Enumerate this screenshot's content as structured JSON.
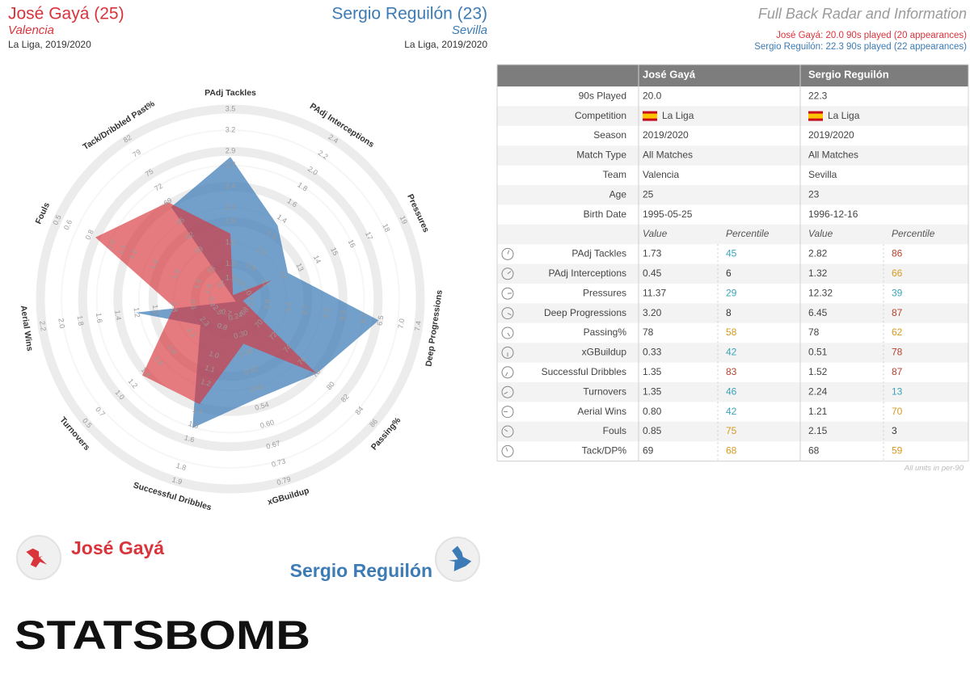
{
  "header": {
    "left": {
      "name": "José Gayá (25)",
      "team": "Valencia",
      "league": "La Liga, 2019/2020"
    },
    "right": {
      "name": "Sergio Reguilón (23)",
      "team": "Sevilla",
      "league": "La Liga, 2019/2020"
    },
    "title": "Full Back Radar and Information",
    "subtitles": [
      "José Gayá: 20.0 90s played (20 appearances)",
      "Sergio Reguilón: 22.3 90s played (22 appearances)"
    ]
  },
  "chart_data": {
    "type": "radar",
    "categories": [
      "PAdj Tackles",
      "PAdj Interceptions",
      "Pressures",
      "Deep Progressions",
      "Passing%",
      "xGBuildup",
      "Successful Dribbles",
      "Turnovers",
      "Aerial Wins",
      "Fouls",
      "Tack/Dribbled Past%"
    ],
    "axes": [
      {
        "lim": [
          0.8,
          3.5
        ],
        "ticks": [
          1.1,
          1.3,
          1.6,
          1.9,
          2.1,
          2.4,
          2.7,
          2.9,
          3.2,
          3.5
        ]
      },
      {
        "lim": [
          0.4,
          2.4
        ],
        "ticks": [
          0.6,
          0.8,
          {
            "value": 1,
            "label": "1.0"
          },
          1.2,
          1.4,
          1.6,
          1.8,
          {
            "value": 2,
            "label": "2.0"
          },
          2.2,
          2.4
        ]
      },
      {
        "lim": [
          9,
          19
        ],
        "ticks": [
          10,
          11,
          12,
          13,
          14,
          15,
          16,
          17,
          18,
          19
        ]
      },
      {
        "lim": [
          2.9,
          7.4
        ],
        "ticks": [
          3.4,
          3.8,
          4.3,
          4.7,
          5.2,
          5.6,
          6.1,
          6.5,
          {
            "value": 7,
            "label": "7.0"
          },
          7.4
        ]
      },
      {
        "lim": [
          66,
          86
        ],
        "ticks": [
          68,
          70,
          72,
          74,
          76,
          78,
          80,
          82,
          84,
          86
        ]
      },
      {
        "lim": [
          0.18,
          0.79
        ],
        "ticks": [
          0.24,
          {
            "value": 0.3,
            "label": "0.30"
          },
          0.36,
          0.42,
          0.48,
          0.54,
          {
            "value": 0.6,
            "label": "0.60"
          },
          0.67,
          0.73,
          0.79
        ]
      },
      {
        "lim": [
          0.6,
          1.9
        ],
        "ticks": [
          0.7,
          0.8,
          {
            "value": 1,
            "label": "1.0"
          },
          1.1,
          1.2,
          1.4,
          1.5,
          1.6,
          1.8,
          1.9
        ]
      },
      {
        "lim": [
          2.7,
          0.5
        ],
        "ticks": [
          2.5,
          2.3,
          2.1,
          1.8,
          1.6,
          1.4,
          1.2,
          {
            "value": 1,
            "label": "1.0"
          },
          0.7,
          0.5
        ]
      },
      {
        "lim": [
          0.2,
          2.2
        ],
        "ticks": [
          0.4,
          0.6,
          0.8,
          {
            "value": 1,
            "label": "1.0"
          },
          1.2,
          1.4,
          1.6,
          1.8,
          {
            "value": 2,
            "label": "2.0"
          },
          2.2
        ]
      },
      {
        "lim": [
          2.1,
          0.5
        ],
        "ticks": [
          1.9,
          1.8,
          1.6,
          1.4,
          1.2,
          1.1,
          {
            "value": 1,
            "label": "1.0"
          },
          0.8,
          0.6,
          0.5
        ]
      },
      {
        "lim": [
          49,
          82
        ],
        "ticks": [
          52,
          55,
          59,
          62,
          65,
          69,
          72,
          75,
          79,
          82
        ]
      }
    ],
    "series": [
      {
        "name": "José Gayá",
        "color": "#d9343b",
        "values": [
          1.73,
          0.45,
          11.37,
          3.2,
          78,
          0.33,
          1.35,
          1.35,
          0.8,
          0.85,
          69
        ],
        "value_labels": [
          "1.73",
          "0.45",
          "11.37",
          "3.20",
          "78",
          "0.33",
          "1.35",
          "1.35",
          "0.80",
          "0.85",
          "69"
        ]
      },
      {
        "name": "Sergio Reguilón",
        "color": "#3c7bb5",
        "values": [
          2.82,
          1.32,
          12.32,
          6.45,
          78,
          0.51,
          1.52,
          2.24,
          1.21,
          2.15,
          68
        ],
        "value_labels": [
          "2.82",
          "1.32",
          "12.32",
          "6.45",
          "78",
          "0.51",
          "1.52",
          "2.24",
          "1.21",
          "2.15",
          "68"
        ]
      }
    ]
  },
  "table": {
    "info": [
      {
        "label": "90s Played",
        "values": [
          "20.0",
          "22.3"
        ]
      },
      {
        "label": "Competition",
        "values": [
          "La Liga",
          "La Liga"
        ]
      },
      {
        "label": "Season",
        "values": [
          "2019/2020",
          "2019/2020"
        ]
      },
      {
        "label": "Match Type",
        "values": [
          "All Matches",
          "All Matches"
        ]
      },
      {
        "label": "Team",
        "values": [
          "Valencia",
          "Sevilla"
        ]
      },
      {
        "label": "Age",
        "values": [
          "25",
          "23"
        ]
      },
      {
        "label": "Birth Date",
        "values": [
          "1995-05-25",
          "1996-12-16"
        ]
      }
    ],
    "subheaders": [
      "Value",
      "Percentile",
      "Value",
      "Percentile"
    ],
    "metrics": [
      "PAdj Tackles",
      "PAdj Interceptions",
      "Pressures",
      "Deep Progressions",
      "Passing%",
      "xGBuildup",
      "Successful Dribbles",
      "Turnovers",
      "Aerial Wins",
      "Fouls",
      "Tack/DP%"
    ],
    "percentiles": [
      [
        45,
        6,
        29,
        8,
        58,
        42,
        83,
        46,
        42,
        75,
        68
      ],
      [
        86,
        66,
        39,
        87,
        62,
        78,
        87,
        13,
        70,
        3,
        59
      ]
    ],
    "note": "All units in per-90"
  },
  "logo": "STATSBOMB"
}
